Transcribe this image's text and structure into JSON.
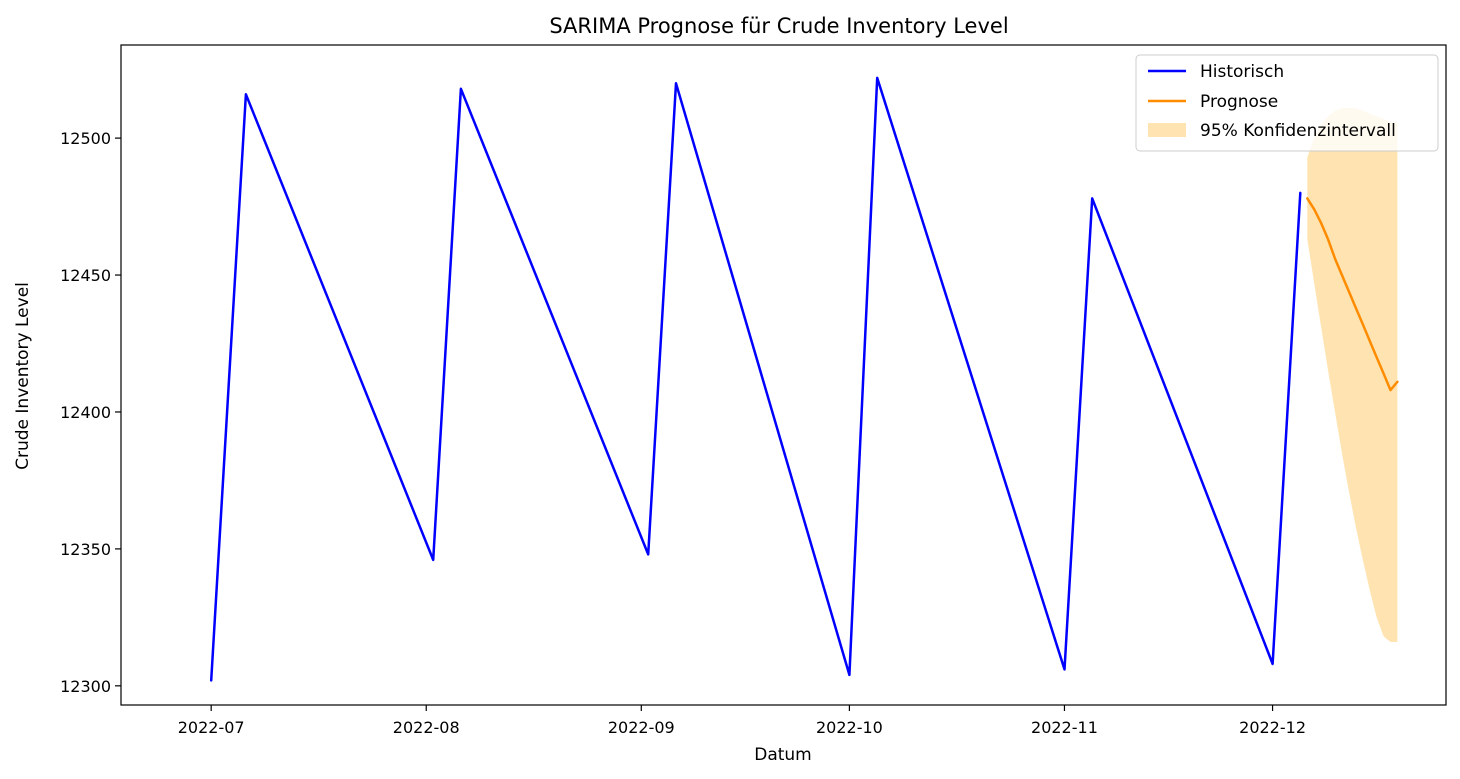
{
  "chart_data": {
    "type": "line",
    "title": "SARIMA Prognose für Crude Inventory Level",
    "xlabel": "Datum",
    "ylabel": "Crude Inventory Level",
    "x_ticks": [
      "2022-07",
      "2022-08",
      "2022-09",
      "2022-10",
      "2022-11",
      "2022-12"
    ],
    "y_ticks": [
      "12300",
      "12350",
      "12400",
      "12450",
      "12500"
    ],
    "xlim": [
      "2022-06-18",
      "2022-12-26"
    ],
    "ylim": [
      12293,
      12534
    ],
    "grid": false,
    "legend_position": "top-right",
    "series": [
      {
        "name": "Historisch",
        "color": "#0000ff",
        "x": [
          "2022-07-01",
          "2022-07-06",
          "2022-08-02",
          "2022-08-06",
          "2022-09-02",
          "2022-09-06",
          "2022-10-01",
          "2022-10-05",
          "2022-11-01",
          "2022-11-05",
          "2022-12-01",
          "2022-12-05"
        ],
        "y": [
          12302,
          12516,
          12346,
          12518,
          12348,
          12520,
          12304,
          12522,
          12306,
          12478,
          12308,
          12480
        ]
      },
      {
        "name": "Prognose",
        "color": "#ff8c00",
        "x": [
          "2022-12-06",
          "2022-12-07",
          "2022-12-08",
          "2022-12-09",
          "2022-12-10",
          "2022-12-11",
          "2022-12-12",
          "2022-12-13",
          "2022-12-14",
          "2022-12-15",
          "2022-12-16",
          "2022-12-17",
          "2022-12-18",
          "2022-12-19"
        ],
        "y": [
          12478,
          12474,
          12469,
          12463,
          12456,
          12450,
          12444,
          12438,
          12432,
          12426,
          12420,
          12414,
          12408,
          12411
        ]
      }
    ],
    "confidence_interval": {
      "name": "95% Konfidenzintervall",
      "color": "#ffa500",
      "opacity": 0.3,
      "x": [
        "2022-12-06",
        "2022-12-07",
        "2022-12-08",
        "2022-12-09",
        "2022-12-10",
        "2022-12-11",
        "2022-12-12",
        "2022-12-13",
        "2022-12-14",
        "2022-12-15",
        "2022-12-16",
        "2022-12-17",
        "2022-12-18",
        "2022-12-19"
      ],
      "lower": [
        12463,
        12447,
        12431,
        12415,
        12400,
        12385,
        12371,
        12358,
        12346,
        12335,
        12325,
        12318,
        12316,
        12316
      ],
      "upper": [
        12493,
        12500,
        12505,
        12508,
        12510,
        12511,
        12511,
        12511,
        12510,
        12509,
        12508,
        12507,
        12506,
        12506
      ]
    }
  }
}
